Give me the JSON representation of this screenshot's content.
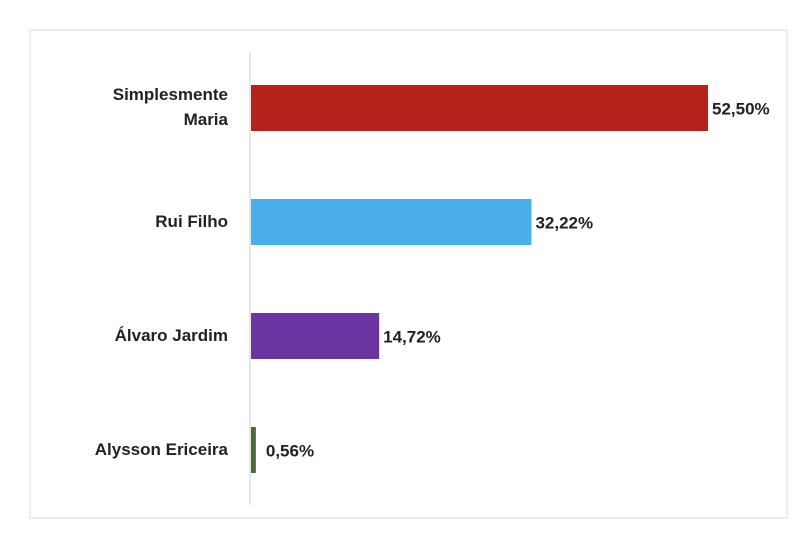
{
  "chart_data": {
    "type": "bar",
    "orientation": "horizontal",
    "categories": [
      "Simplesmente Maria",
      "Rui Filho",
      "Álvaro Jardim",
      "Alysson Ericeira"
    ],
    "values": [
      52.5,
      32.22,
      14.72,
      0.56
    ],
    "value_labels": [
      "52,50%",
      "32,22%",
      "14,72%",
      "0,56%"
    ],
    "colors": [
      "#b5211b",
      "#4aaeea",
      "#6a35a0",
      "#4e6b3a"
    ]
  }
}
